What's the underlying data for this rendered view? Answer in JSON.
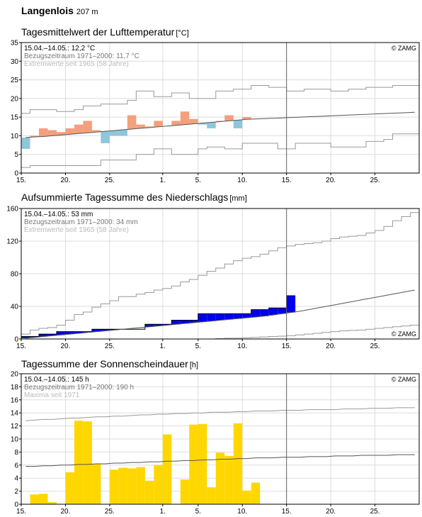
{
  "station": {
    "name": "Langenlois",
    "altitude": "207 m"
  },
  "colors": {
    "above_normal_temp": "#f4a07c",
    "below_normal_temp": "#8ec6dc",
    "precip_above": "#0000ee",
    "precip_below": "#d6f0d6",
    "sunshine": "#ffd700",
    "grid": "#dddddd",
    "normal_line": "#555555",
    "extreme_line": "#999999"
  },
  "chart_data": [
    {
      "id": "temp",
      "type": "bar",
      "title": "Tagesmittelwert der Lufttemperatur",
      "unit": "[°C]",
      "legend": {
        "line1": "15.04.–14.05.: 12,2 °C",
        "line2": "Bezugszeitraum 1971–2000: 11,7 °C",
        "line3": "Extremwerte seit 1965 (58 Jahre)"
      },
      "copyright": "© ZAMG",
      "ylim": [
        0,
        35
      ],
      "yticks": [
        0,
        5,
        10,
        15,
        20,
        25,
        30,
        35
      ],
      "xticks": [
        {
          "day": 0,
          "label": "15."
        },
        {
          "day": 5,
          "label": "20."
        },
        {
          "day": 10,
          "label": "25."
        },
        {
          "day": 16,
          "label": "1."
        },
        {
          "day": 20,
          "label": "5."
        },
        {
          "day": 25,
          "label": "10."
        },
        {
          "day": 30,
          "label": "15."
        },
        {
          "day": 35,
          "label": "20."
        },
        {
          "day": 40,
          "label": "25."
        }
      ],
      "days_total": 45,
      "current_day": 30,
      "series": [
        {
          "role": "observed",
          "values": [
            6.5,
            10,
            12,
            11.5,
            11,
            12,
            13,
            14,
            11.5,
            8,
            10,
            10,
            15.5,
            13,
            12.5,
            14,
            12.5,
            14,
            16.5,
            14.5,
            13,
            12,
            14,
            15.5,
            12,
            15
          ]
        },
        {
          "role": "normal",
          "values": [
            9.5,
            9.7,
            9.8,
            10.0,
            10.2,
            10.4,
            10.6,
            10.8,
            11.0,
            11.2,
            11.4,
            11.6,
            11.8,
            12.0,
            12.2,
            12.4,
            12.6,
            12.8,
            13.0,
            13.2,
            13.4,
            13.6,
            13.8,
            14.0,
            14.2,
            14.4,
            14.5,
            14.6,
            14.7,
            14.8,
            14.9,
            15.0,
            15.1,
            15.2,
            15.3,
            15.4,
            15.5,
            15.6,
            15.7,
            15.8,
            15.9,
            16.0,
            16.1,
            16.2,
            16.3
          ]
        },
        {
          "role": "max",
          "values": [
            16,
            17,
            17,
            17,
            16.5,
            16.5,
            17,
            18,
            18,
            18.5,
            18.5,
            18.5,
            19.5,
            22,
            22,
            20.5,
            20.5,
            21.5,
            21.5,
            20,
            20,
            20,
            22,
            22,
            22.5,
            22.5,
            23.5,
            23.5,
            23,
            23,
            22,
            22,
            22.5,
            22.5,
            22.5,
            22,
            22,
            22.5,
            22.5,
            23,
            23,
            23,
            23.5,
            23.5,
            23.5
          ]
        },
        {
          "role": "min",
          "values": [
            1.5,
            2,
            2,
            2,
            2,
            2,
            2,
            2,
            2,
            3.5,
            3.5,
            3.5,
            3.5,
            5,
            5,
            6.5,
            6.5,
            5,
            5,
            5,
            6.5,
            7,
            7,
            6.5,
            6.5,
            8,
            8,
            8,
            8,
            6.5,
            6.5,
            8,
            8,
            8,
            8,
            7,
            7,
            7,
            7,
            8.5,
            8.5,
            9,
            10.5,
            10.5,
            10.5
          ]
        }
      ]
    },
    {
      "id": "precip",
      "type": "bar",
      "title": "Aufsummierte Tagessumme des Niederschlags",
      "unit": "[mm]",
      "legend": {
        "line1": "15.04.–14.05.: 53 mm",
        "line2": "Bezugszeitraum 1971–2000: 34 mm",
        "line3": "Extremwerte seit 1965 (58 Jahre)"
      },
      "copyright": "© ZAMG",
      "ylim": [
        0,
        160
      ],
      "yticks": [
        0,
        40,
        80,
        120,
        160
      ],
      "xticks": [
        {
          "day": 0,
          "label": "15."
        },
        {
          "day": 5,
          "label": "20."
        },
        {
          "day": 10,
          "label": "25."
        },
        {
          "day": 16,
          "label": "1."
        },
        {
          "day": 20,
          "label": "5."
        },
        {
          "day": 25,
          "label": "10."
        },
        {
          "day": 30,
          "label": "15."
        },
        {
          "day": 35,
          "label": "20."
        },
        {
          "day": 40,
          "label": "25."
        }
      ],
      "days_total": 45,
      "current_day": 30,
      "series": [
        {
          "role": "observed_cumulative",
          "values": [
            3,
            3,
            6,
            6,
            9,
            9,
            9,
            9,
            12,
            12,
            12,
            12,
            12,
            12,
            18,
            18,
            18,
            23,
            23,
            23,
            31,
            31,
            31,
            31,
            31,
            31,
            36,
            36,
            38,
            38,
            53
          ]
        },
        {
          "role": "normal_cumulative",
          "values": [
            1,
            2,
            3,
            4,
            5,
            6,
            7,
            8,
            9,
            10,
            11,
            12,
            13,
            14,
            15,
            16,
            17,
            18,
            19,
            20,
            21,
            22,
            23,
            24,
            25,
            26,
            27,
            28,
            29.5,
            31,
            32.5,
            34,
            36,
            38,
            40,
            42,
            44,
            46,
            48,
            50,
            52,
            54,
            56,
            58,
            60
          ]
        },
        {
          "role": "max_cumulative",
          "values": [
            6,
            11,
            13,
            14,
            17,
            23,
            30,
            33,
            39,
            43,
            47,
            52,
            52,
            55,
            57,
            60,
            62,
            65,
            70,
            73,
            78,
            83,
            87,
            92,
            96,
            99,
            101,
            104,
            108,
            112,
            114,
            116,
            117,
            118,
            120,
            123,
            125,
            126,
            127,
            130,
            133,
            138,
            145,
            150,
            155
          ]
        },
        {
          "role": "min_cumulative",
          "values": [
            0,
            0,
            0,
            0,
            0,
            0,
            0,
            0,
            0,
            0,
            0,
            0,
            0,
            0,
            0,
            0,
            0,
            0,
            0,
            0,
            0,
            0,
            0.5,
            1,
            1,
            1.5,
            2,
            2.5,
            3,
            3.5,
            4,
            5,
            6,
            7,
            8,
            9,
            10,
            10.5,
            11,
            12,
            13,
            14,
            15,
            16,
            17
          ]
        }
      ]
    },
    {
      "id": "sun",
      "type": "bar",
      "title": "Tagessumme der Sonnenscheindauer",
      "unit": "[h]",
      "legend": {
        "line1": "15.04.–14.05.: 145 h",
        "line2": "Bezugszeitraum 1971–2000: 190 h",
        "line3": "Maxima seit 1971"
      },
      "copyright": "© ZAMG",
      "ylim": [
        0,
        20
      ],
      "yticks": [
        0,
        2,
        4,
        6,
        8,
        10,
        12,
        14,
        16,
        18,
        20
      ],
      "xticks": [
        {
          "day": 0,
          "label": "15."
        },
        {
          "day": 5,
          "label": "20."
        },
        {
          "day": 10,
          "label": "25."
        },
        {
          "day": 16,
          "label": "1."
        },
        {
          "day": 20,
          "label": "5."
        },
        {
          "day": 25,
          "label": "10."
        },
        {
          "day": 30,
          "label": "15."
        },
        {
          "day": 35,
          "label": "20."
        },
        {
          "day": 40,
          "label": "25."
        }
      ],
      "days_total": 45,
      "current_day": 30,
      "series": [
        {
          "role": "observed",
          "values": [
            0,
            1.5,
            1.6,
            0.3,
            0,
            4.9,
            12.8,
            12.7,
            6.2,
            0,
            5.3,
            5.6,
            5.5,
            5.7,
            3.6,
            6,
            10.7,
            0,
            3.8,
            12.2,
            12.3,
            2.6,
            7.9,
            7.4,
            12.4,
            2.1,
            3.3
          ]
        },
        {
          "role": "normal",
          "values": [
            5.8,
            5.8,
            5.9,
            5.9,
            6.0,
            6.0,
            6.1,
            6.1,
            6.2,
            6.2,
            6.3,
            6.3,
            6.4,
            6.4,
            6.5,
            6.5,
            6.6,
            6.6,
            6.7,
            6.7,
            6.8,
            6.8,
            6.9,
            6.9,
            7.0,
            7.0,
            7.1,
            7.1,
            7.1,
            7.2,
            7.2,
            7.2,
            7.3,
            7.3,
            7.3,
            7.4,
            7.4,
            7.4,
            7.5,
            7.5,
            7.5,
            7.5,
            7.6,
            7.6,
            7.6
          ]
        },
        {
          "role": "max",
          "values": [
            12.8,
            12.9,
            13.0,
            13.0,
            13.1,
            13.2,
            13.2,
            13.3,
            13.4,
            13.4,
            13.5,
            13.5,
            13.6,
            13.7,
            13.7,
            13.8,
            13.8,
            13.9,
            13.9,
            14.0,
            14.0,
            14.1,
            14.1,
            14.1,
            14.2,
            14.2,
            14.3,
            14.3,
            14.3,
            14.4,
            14.4,
            14.4,
            14.5,
            14.5,
            14.5,
            14.5,
            14.6,
            14.6,
            14.6,
            14.7,
            14.7,
            14.7,
            14.8,
            14.8,
            14.8
          ]
        }
      ]
    }
  ]
}
